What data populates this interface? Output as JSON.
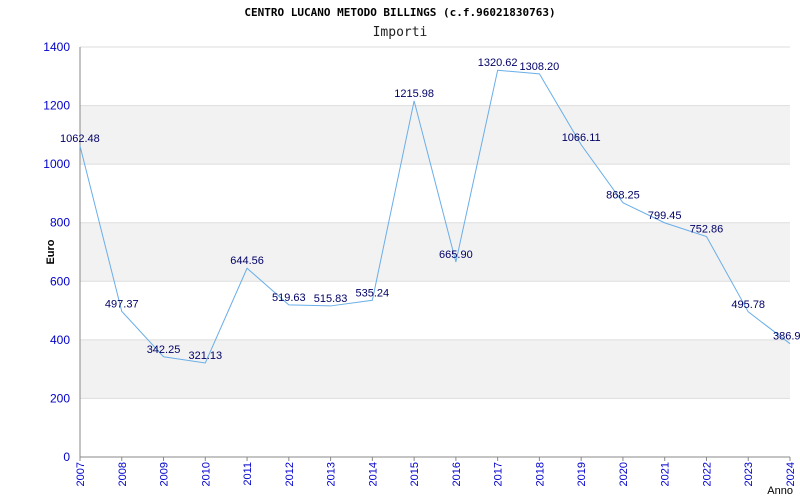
{
  "chart_data": {
    "type": "line",
    "title": "CENTRO LUCANO METODO BILLINGS (c.f.96021830763)",
    "subtitle": "Importi",
    "xlabel": "Anno",
    "ylabel": "Euro",
    "categories": [
      "2007",
      "2008",
      "2009",
      "2010",
      "2011",
      "2012",
      "2013",
      "2014",
      "2015",
      "2016",
      "2017",
      "2018",
      "2019",
      "2020",
      "2021",
      "2022",
      "2023",
      "2024"
    ],
    "series": [
      {
        "values": [
          1062.48,
          497.37,
          342.25,
          321.13,
          644.56,
          519.63,
          515.83,
          535.24,
          1215.98,
          665.9,
          1320.62,
          1308.2,
          1066.11,
          868.25,
          799.45,
          752.86,
          495.78,
          386.9
        ],
        "labels": [
          "1062.48",
          "497.37",
          "342.25",
          "321.13",
          "644.56",
          "519.63",
          "515.83",
          "535.24",
          "1215.98",
          "665.90",
          "1320.62",
          "1308.20",
          "1066.11",
          "868.25",
          "799.45",
          "752.86",
          "495.78",
          "386.9"
        ]
      }
    ],
    "ylim": [
      0,
      1400
    ],
    "yticks": [
      "0",
      "200",
      "400",
      "600",
      "800",
      "1000",
      "1200",
      "1400"
    ],
    "grid": true,
    "colors": {
      "line": "#6aaee8",
      "axis_text": "#0000cc",
      "label_text": "#000066",
      "band": "#f2f2f2",
      "grid": "#dddddd"
    }
  }
}
